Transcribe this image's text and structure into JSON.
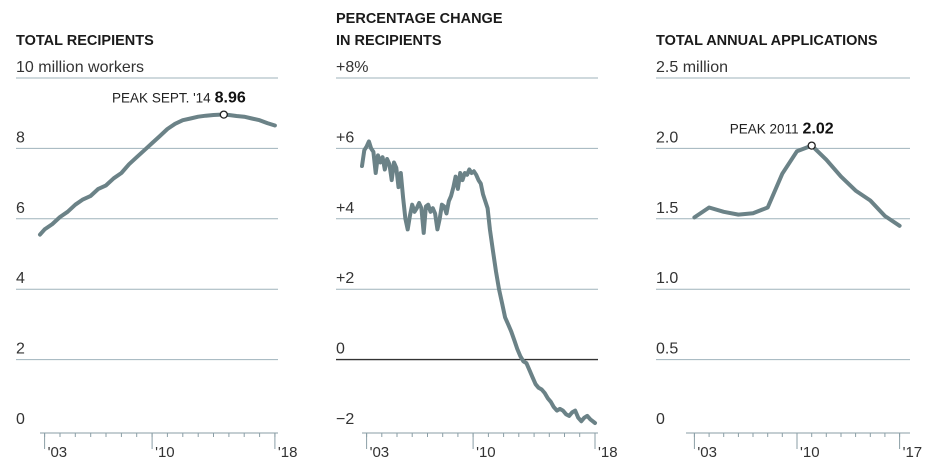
{
  "chart_data": [
    {
      "type": "line",
      "title": "TOTAL RECIPIENTS",
      "unit_label": "10 million workers",
      "ylim": [
        0,
        10
      ],
      "y_ticks": [
        0,
        2,
        4,
        6,
        8,
        10
      ],
      "y_tick_labels": [
        "0",
        "2",
        "4",
        "6",
        "8",
        "10 million workers"
      ],
      "x_range": [
        2002.7,
        2018.2
      ],
      "x_ticks": [
        2003,
        2010,
        2018
      ],
      "x_tick_labels": [
        "'03",
        "'10",
        "'18"
      ],
      "grid": true,
      "series": [
        {
          "x": [
            2002.7,
            2003.0,
            2003.5,
            2004.0,
            2004.5,
            2005.0,
            2005.5,
            2006.0,
            2006.5,
            2007.0,
            2007.5,
            2008.0,
            2008.5,
            2009.0,
            2009.5,
            2010.0,
            2010.5,
            2011.0,
            2011.5,
            2012.0,
            2012.5,
            2013.0,
            2013.5,
            2014.0,
            2014.5,
            2014.67,
            2015.0,
            2015.5,
            2016.0,
            2016.5,
            2017.0,
            2017.5,
            2018.0
          ],
          "values": [
            5.55,
            5.7,
            5.85,
            6.05,
            6.2,
            6.4,
            6.55,
            6.65,
            6.85,
            6.95,
            7.15,
            7.3,
            7.55,
            7.75,
            7.95,
            8.15,
            8.35,
            8.55,
            8.7,
            8.8,
            8.85,
            8.9,
            8.93,
            8.95,
            8.96,
            8.96,
            8.95,
            8.92,
            8.9,
            8.85,
            8.8,
            8.72,
            8.65
          ]
        }
      ],
      "annotation": {
        "label": "PEAK SEPT. '14",
        "value": "8.96",
        "x": 2014.67,
        "y": 8.96
      }
    },
    {
      "type": "line",
      "title": "PERCENTAGE CHANGE IN RECIPIENTS",
      "title_lines": [
        "PERCENTAGE CHANGE",
        "IN RECIPIENTS"
      ],
      "ylim": [
        -2,
        8
      ],
      "y_ticks": [
        -2,
        0,
        2,
        4,
        6,
        8
      ],
      "y_tick_labels": [
        "−2",
        "0",
        "+2",
        "+4",
        "+6",
        "+8%"
      ],
      "x_range": [
        2002.7,
        2018.2
      ],
      "x_ticks": [
        2003,
        2010,
        2018
      ],
      "x_tick_labels": [
        "'03",
        "'10",
        "'18"
      ],
      "grid": true,
      "zero_line": true,
      "series": [
        {
          "x": [
            2002.7,
            2002.85,
            2003.0,
            2003.15,
            2003.3,
            2003.45,
            2003.6,
            2003.75,
            2003.9,
            2004.05,
            2004.2,
            2004.35,
            2004.5,
            2004.65,
            2004.8,
            2004.95,
            2005.1,
            2005.25,
            2005.4,
            2005.55,
            2005.7,
            2005.85,
            2006.0,
            2006.15,
            2006.3,
            2006.45,
            2006.6,
            2006.75,
            2006.9,
            2007.05,
            2007.2,
            2007.35,
            2007.5,
            2007.65,
            2007.8,
            2007.95,
            2008.1,
            2008.25,
            2008.4,
            2008.55,
            2008.7,
            2008.85,
            2009.0,
            2009.15,
            2009.3,
            2009.45,
            2009.6,
            2009.75,
            2009.9,
            2010.05,
            2010.2,
            2010.35,
            2010.5,
            2010.65,
            2010.8,
            2010.95,
            2011.1,
            2011.3,
            2011.5,
            2011.7,
            2011.9,
            2012.1,
            2012.3,
            2012.5,
            2012.7,
            2012.9,
            2013.1,
            2013.3,
            2013.5,
            2013.7,
            2013.9,
            2014.1,
            2014.3,
            2014.5,
            2014.7,
            2014.9,
            2015.1,
            2015.3,
            2015.5,
            2015.7,
            2015.9,
            2016.1,
            2016.3,
            2016.5,
            2016.7,
            2016.9,
            2017.1,
            2017.3,
            2017.5,
            2017.7,
            2017.85,
            2018.0
          ],
          "values": [
            5.5,
            5.95,
            6.05,
            6.2,
            6.0,
            5.9,
            5.3,
            5.8,
            5.6,
            5.75,
            5.4,
            5.7,
            5.55,
            5.1,
            5.6,
            5.45,
            4.9,
            5.3,
            4.6,
            4.0,
            3.7,
            4.1,
            4.4,
            4.2,
            4.3,
            4.45,
            4.3,
            3.6,
            4.35,
            4.4,
            4.2,
            4.3,
            4.15,
            3.7,
            4.0,
            4.4,
            4.35,
            4.15,
            4.5,
            4.65,
            4.9,
            5.2,
            4.85,
            5.3,
            5.1,
            5.3,
            5.25,
            5.4,
            5.3,
            5.35,
            5.25,
            5.1,
            5.0,
            4.7,
            4.5,
            4.3,
            3.7,
            3.1,
            2.5,
            2.0,
            1.6,
            1.2,
            1.0,
            0.8,
            0.55,
            0.3,
            0.1,
            -0.05,
            -0.1,
            -0.3,
            -0.5,
            -0.7,
            -0.8,
            -0.85,
            -0.95,
            -1.1,
            -1.2,
            -1.35,
            -1.45,
            -1.4,
            -1.45,
            -1.55,
            -1.6,
            -1.5,
            -1.45,
            -1.65,
            -1.75,
            -1.65,
            -1.6,
            -1.7,
            -1.75,
            -1.8
          ]
        }
      ]
    },
    {
      "type": "line",
      "title": "TOTAL ANNUAL APPLICATIONS",
      "unit_label": "2.5 million",
      "ylim": [
        0,
        2.5
      ],
      "y_ticks": [
        0,
        0.5,
        1.0,
        1.5,
        2.0,
        2.5
      ],
      "y_tick_labels": [
        "0",
        "0.5",
        "1.0",
        "1.5",
        "2.0",
        "2.5 million"
      ],
      "x_range": [
        2002.7,
        2017.3
      ],
      "x_ticks": [
        2003,
        2010,
        2017
      ],
      "x_tick_labels": [
        "'03",
        "'10",
        "'17"
      ],
      "grid": true,
      "series": [
        {
          "x": [
            2003,
            2004,
            2005,
            2006,
            2007,
            2008,
            2009,
            2010,
            2011,
            2012,
            2013,
            2014,
            2015,
            2016,
            2017
          ],
          "values": [
            1.51,
            1.58,
            1.55,
            1.53,
            1.54,
            1.58,
            1.82,
            1.98,
            2.02,
            1.92,
            1.8,
            1.7,
            1.63,
            1.52,
            1.45
          ]
        }
      ],
      "annotation": {
        "label": "PEAK 2011",
        "value": "2.02",
        "x": 2011,
        "y": 2.02
      }
    }
  ],
  "colors": {
    "line": "#6b8287",
    "grid": "#9fb3bb",
    "zero": "#333333",
    "axis": "#8a9ea6",
    "text": "#222222"
  }
}
